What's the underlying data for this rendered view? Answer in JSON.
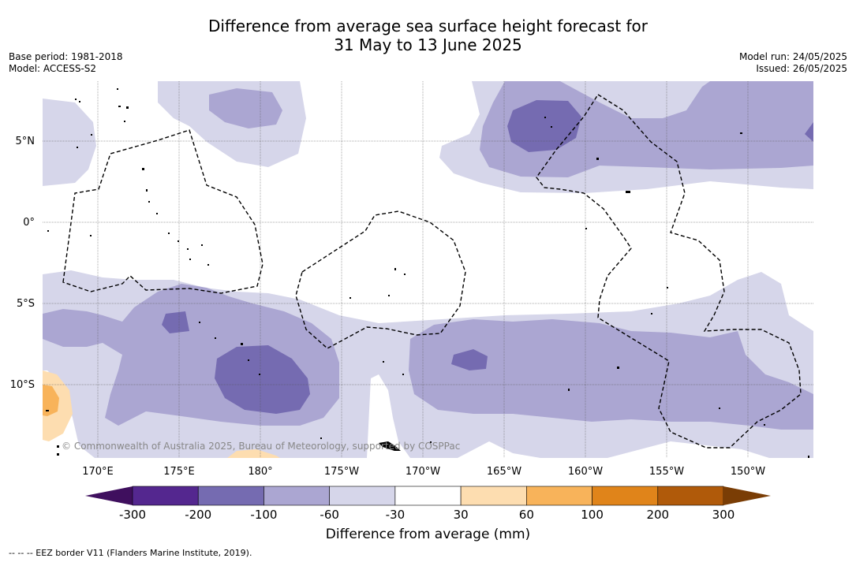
{
  "title_line1": "Difference from average sea surface height forecast for",
  "title_line2": "31 May to 13 June 2025",
  "base_period": "Base period: 1981-2018",
  "model": "Model: ACCESS-S2",
  "model_run": "Model run: 24/05/2025",
  "issued": "Issued: 26/05/2025",
  "copyright": "© Commonwealth of Australia 2025, Bureau of Meteorology, supported by COSPPac",
  "legend_note": "-- -- -- EEZ border V11 (Flanders Marine Institute, 2019).",
  "lat_labels": [
    "5°N",
    "0°",
    "5°S",
    "10°S"
  ],
  "lon_labels": [
    "170°E",
    "175°E",
    "180°",
    "175°W",
    "170°W",
    "165°W",
    "160°W",
    "155°W",
    "150°W"
  ],
  "colorbar": {
    "title": "Difference from average (mm)",
    "tick_labels": [
      "-300",
      "-200",
      "-100",
      "-60",
      "-30",
      "30",
      "60",
      "100",
      "200",
      "300"
    ],
    "colors": [
      "#3f0f5e",
      "#54278f",
      "#756bb1",
      "#aba6d2",
      "#d6d6ea",
      "#ffffff",
      "#fdddb0",
      "#f8b35a",
      "#e0841a",
      "#b05a0a",
      "#7a3d05"
    ]
  }
}
